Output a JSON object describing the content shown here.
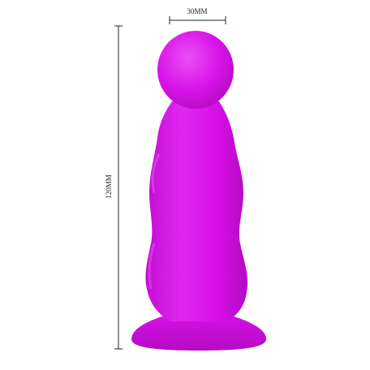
{
  "product": {
    "colors": {
      "body": "#d70fe6",
      "highlight": "#ea4cf5",
      "shadow": "#b10bc2",
      "dimension_line": "#222222"
    }
  },
  "dimensions": {
    "width_label": "30MM",
    "height_label": "120MM"
  }
}
